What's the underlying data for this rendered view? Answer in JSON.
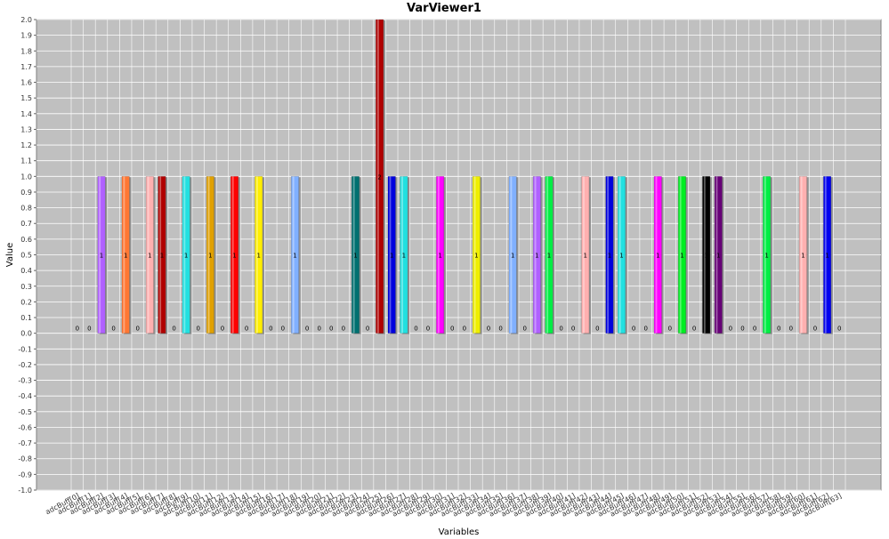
{
  "chart_data": {
    "type": "bar",
    "title": "VarViewer1",
    "xlabel": "Variables",
    "ylabel": "Value",
    "ylim": [
      -1.0,
      2.0
    ],
    "y_tick_step": 0.1,
    "grid": true,
    "categories": [
      "adcBuff[0]",
      "adcBuff[1]",
      "adcBuff[2]",
      "adcBuff[3]",
      "adcBuff[4]",
      "adcBuff[5]",
      "adcBuff[6]",
      "adcBuff[7]",
      "adcBuff[8]",
      "adcBuff[9]",
      "adcBuff[10]",
      "adcBuff[11]",
      "adcBuff[12]",
      "adcBuff[13]",
      "adcBuff[14]",
      "adcBuff[15]",
      "adcBuff[16]",
      "adcBuff[17]",
      "adcBuff[18]",
      "adcBuff[19]",
      "adcBuff[20]",
      "adcBuff[21]",
      "adcBuff[22]",
      "adcBuff[23]",
      "adcBuff[24]",
      "adcBuff[25]",
      "adcBuff[26]",
      "adcBuff[27]",
      "adcBuff[28]",
      "adcBuff[29]",
      "adcBuff[30]",
      "adcBuff[31]",
      "adcBuff[32]",
      "adcBuff[33]",
      "adcBuff[34]",
      "adcBuff[35]",
      "adcBuff[36]",
      "adcBuff[37]",
      "adcBuff[38]",
      "adcBuff[39]",
      "adcBuff[40]",
      "adcBuff[41]",
      "adcBuff[42]",
      "adcBuff[43]",
      "adcBuff[44]",
      "adcBuff[45]",
      "adcBuff[46]",
      "adcBuff[47]",
      "adcBuff[48]",
      "adcBuff[49]",
      "adcBuff[50]",
      "adcBuff[51]",
      "adcBuff[52]",
      "adcBuff[53]",
      "adcBuff[54]",
      "adcBuff[55]",
      "adcBuff[56]",
      "adcBuff[57]",
      "adcBuff[58]",
      "adcBuff[59]",
      "adcBuff[60]",
      "adcBuff[61]",
      "adcBuff[62]",
      "adcBuff[63]"
    ],
    "values": [
      0,
      0,
      1,
      0,
      1,
      0,
      1,
      1,
      0,
      1,
      0,
      1,
      0,
      1,
      0,
      1,
      0,
      0,
      1,
      0,
      0,
      0,
      0,
      1,
      0,
      2,
      1,
      1,
      0,
      0,
      1,
      0,
      0,
      1,
      0,
      0,
      1,
      0,
      1,
      1,
      0,
      0,
      1,
      0,
      1,
      1,
      0,
      0,
      1,
      0,
      1,
      0,
      1,
      1,
      0,
      0,
      0,
      1,
      0,
      0,
      1,
      0,
      1,
      0
    ],
    "colors": [
      "#ff5555",
      "#5555ff",
      "#b060ff",
      "#55ff55",
      "#ff7733",
      "#ff55ff",
      "#ffb0b0",
      "#b00000",
      "#404040",
      "#22e0e0",
      "#808080",
      "#e0a000",
      "#ffff00",
      "#ff0000",
      "#00ffff",
      "#ffee00",
      "#ff00aa",
      "#303030",
      "#80b0ff",
      "#66ff66",
      "#8800ff",
      "#00aa00",
      "#ff8800",
      "#007070",
      "#aaaaaa",
      "#b00000",
      "#0000dd",
      "#22e0e0",
      "#777777",
      "#00ccff",
      "#ff00ff",
      "#004400",
      "#ff99cc",
      "#eeee00",
      "#550000",
      "#2222ff",
      "#80b0ff",
      "#00ff88",
      "#b060ff",
      "#00ee44",
      "#ff8800",
      "#0000aa",
      "#ffb0b0",
      "#888800",
      "#0000dd",
      "#22e0e0",
      "#999999",
      "#ff4444",
      "#ff00ff",
      "#00ffaa",
      "#00ee22",
      "#444400",
      "#000000",
      "#660077",
      "#ff6600",
      "#cccccc",
      "#aa5500",
      "#00ee44",
      "#ffaaaa",
      "#55aaff",
      "#ffb0b0",
      "#ff0000",
      "#0000ee",
      "#8844aa"
    ]
  }
}
